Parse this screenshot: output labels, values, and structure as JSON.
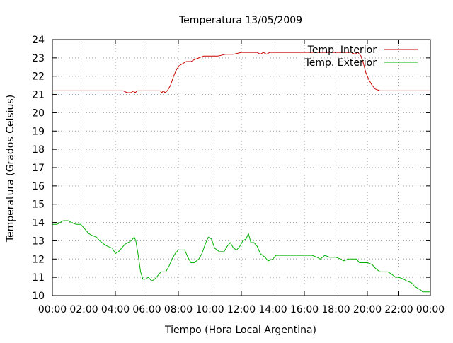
{
  "chart_data": {
    "type": "line",
    "title": "Temperatura 13/05/2009",
    "xlabel": "Tiempo (Hora Local Argentina)",
    "ylabel": "Temperatura (Grados Celsius)",
    "xlim": [
      0,
      24
    ],
    "ylim": [
      10,
      24
    ],
    "x_ticks": [
      0,
      2,
      4,
      6,
      8,
      10,
      12,
      14,
      16,
      18,
      20,
      22,
      24
    ],
    "x_tick_labels": [
      "00:00",
      "02:00",
      "04:00",
      "06:00",
      "08:00",
      "10:00",
      "12:00",
      "14:00",
      "16:00",
      "18:00",
      "20:00",
      "22:00",
      "00:00"
    ],
    "y_ticks": [
      10,
      11,
      12,
      13,
      14,
      15,
      16,
      17,
      18,
      19,
      20,
      21,
      22,
      23,
      24
    ],
    "grid": true,
    "legend_position": "top-right",
    "series": [
      {
        "name": "Temp. Interior",
        "color": "#cc0000",
        "points": [
          [
            0.0,
            21.2
          ],
          [
            0.5,
            21.2
          ],
          [
            1.0,
            21.2
          ],
          [
            1.5,
            21.2
          ],
          [
            2.0,
            21.2
          ],
          [
            2.5,
            21.2
          ],
          [
            3.0,
            21.2
          ],
          [
            3.5,
            21.2
          ],
          [
            4.0,
            21.2
          ],
          [
            4.5,
            21.2
          ],
          [
            4.75,
            21.1
          ],
          [
            5.0,
            21.1
          ],
          [
            5.15,
            21.2
          ],
          [
            5.25,
            21.1
          ],
          [
            5.4,
            21.2
          ],
          [
            5.75,
            21.2
          ],
          [
            6.0,
            21.2
          ],
          [
            6.5,
            21.2
          ],
          [
            6.85,
            21.2
          ],
          [
            6.95,
            21.1
          ],
          [
            7.05,
            21.2
          ],
          [
            7.15,
            21.1
          ],
          [
            7.3,
            21.2
          ],
          [
            7.5,
            21.5
          ],
          [
            7.7,
            22.0
          ],
          [
            7.9,
            22.4
          ],
          [
            8.1,
            22.6
          ],
          [
            8.3,
            22.7
          ],
          [
            8.5,
            22.8
          ],
          [
            8.8,
            22.8
          ],
          [
            9.0,
            22.9
          ],
          [
            9.3,
            23.0
          ],
          [
            9.6,
            23.1
          ],
          [
            10.0,
            23.1
          ],
          [
            10.5,
            23.1
          ],
          [
            11.0,
            23.2
          ],
          [
            11.5,
            23.2
          ],
          [
            12.0,
            23.3
          ],
          [
            12.5,
            23.3
          ],
          [
            13.0,
            23.3
          ],
          [
            13.2,
            23.2
          ],
          [
            13.4,
            23.3
          ],
          [
            13.6,
            23.2
          ],
          [
            13.8,
            23.3
          ],
          [
            14.5,
            23.3
          ],
          [
            15.0,
            23.3
          ],
          [
            16.0,
            23.3
          ],
          [
            17.0,
            23.3
          ],
          [
            18.0,
            23.3
          ],
          [
            18.5,
            23.3
          ],
          [
            19.0,
            23.3
          ],
          [
            19.2,
            23.2
          ],
          [
            19.4,
            23.3
          ],
          [
            19.6,
            23.1
          ],
          [
            19.75,
            22.7
          ],
          [
            19.9,
            22.2
          ],
          [
            20.1,
            21.8
          ],
          [
            20.3,
            21.5
          ],
          [
            20.5,
            21.3
          ],
          [
            20.8,
            21.2
          ],
          [
            21.5,
            21.2
          ],
          [
            22.0,
            21.2
          ],
          [
            22.5,
            21.2
          ],
          [
            23.0,
            21.2
          ],
          [
            23.5,
            21.2
          ],
          [
            24.0,
            21.2
          ]
        ]
      },
      {
        "name": "Temp. Exterior",
        "color": "#00b000",
        "points": [
          [
            0.0,
            13.9
          ],
          [
            0.3,
            13.9
          ],
          [
            0.5,
            14.0
          ],
          [
            0.7,
            14.1
          ],
          [
            1.0,
            14.1
          ],
          [
            1.2,
            14.0
          ],
          [
            1.5,
            13.9
          ],
          [
            1.8,
            13.9
          ],
          [
            2.0,
            13.7
          ],
          [
            2.3,
            13.4
          ],
          [
            2.5,
            13.3
          ],
          [
            2.8,
            13.2
          ],
          [
            3.0,
            13.0
          ],
          [
            3.3,
            12.8
          ],
          [
            3.5,
            12.7
          ],
          [
            3.8,
            12.6
          ],
          [
            4.0,
            12.3
          ],
          [
            4.2,
            12.4
          ],
          [
            4.4,
            12.6
          ],
          [
            4.6,
            12.8
          ],
          [
            4.8,
            12.9
          ],
          [
            5.0,
            13.0
          ],
          [
            5.2,
            13.2
          ],
          [
            5.3,
            13.0
          ],
          [
            5.45,
            12.2
          ],
          [
            5.6,
            11.3
          ],
          [
            5.75,
            10.9
          ],
          [
            5.9,
            10.9
          ],
          [
            6.1,
            11.0
          ],
          [
            6.3,
            10.8
          ],
          [
            6.5,
            10.9
          ],
          [
            6.7,
            11.1
          ],
          [
            6.9,
            11.3
          ],
          [
            7.2,
            11.3
          ],
          [
            7.4,
            11.6
          ],
          [
            7.6,
            12.0
          ],
          [
            7.8,
            12.3
          ],
          [
            8.0,
            12.5
          ],
          [
            8.2,
            12.5
          ],
          [
            8.4,
            12.5
          ],
          [
            8.6,
            12.1
          ],
          [
            8.8,
            11.8
          ],
          [
            9.0,
            11.8
          ],
          [
            9.3,
            12.0
          ],
          [
            9.5,
            12.3
          ],
          [
            9.7,
            12.8
          ],
          [
            9.9,
            13.2
          ],
          [
            10.1,
            13.1
          ],
          [
            10.3,
            12.6
          ],
          [
            10.6,
            12.4
          ],
          [
            10.9,
            12.4
          ],
          [
            11.1,
            12.7
          ],
          [
            11.3,
            12.9
          ],
          [
            11.5,
            12.6
          ],
          [
            11.7,
            12.5
          ],
          [
            11.9,
            12.7
          ],
          [
            12.1,
            13.0
          ],
          [
            12.3,
            13.1
          ],
          [
            12.45,
            13.4
          ],
          [
            12.6,
            12.9
          ],
          [
            12.8,
            12.9
          ],
          [
            13.0,
            12.7
          ],
          [
            13.2,
            12.3
          ],
          [
            13.5,
            12.1
          ],
          [
            13.7,
            11.9
          ],
          [
            14.0,
            12.0
          ],
          [
            14.2,
            12.2
          ],
          [
            14.5,
            12.2
          ],
          [
            15.0,
            12.2
          ],
          [
            15.5,
            12.2
          ],
          [
            16.0,
            12.2
          ],
          [
            16.5,
            12.2
          ],
          [
            16.8,
            12.1
          ],
          [
            17.0,
            12.0
          ],
          [
            17.3,
            12.2
          ],
          [
            17.6,
            12.1
          ],
          [
            18.0,
            12.1
          ],
          [
            18.3,
            12.0
          ],
          [
            18.5,
            11.9
          ],
          [
            18.8,
            12.0
          ],
          [
            19.0,
            12.0
          ],
          [
            19.3,
            12.0
          ],
          [
            19.5,
            11.8
          ],
          [
            19.8,
            11.8
          ],
          [
            20.0,
            11.8
          ],
          [
            20.3,
            11.7
          ],
          [
            20.5,
            11.5
          ],
          [
            20.8,
            11.3
          ],
          [
            21.0,
            11.3
          ],
          [
            21.3,
            11.3
          ],
          [
            21.5,
            11.2
          ],
          [
            21.8,
            11.0
          ],
          [
            22.0,
            11.0
          ],
          [
            22.3,
            10.9
          ],
          [
            22.5,
            10.8
          ],
          [
            22.8,
            10.7
          ],
          [
            23.0,
            10.5
          ],
          [
            23.2,
            10.4
          ],
          [
            23.4,
            10.3
          ],
          [
            23.5,
            10.2
          ],
          [
            23.8,
            10.2
          ],
          [
            24.0,
            10.2
          ]
        ]
      }
    ]
  }
}
